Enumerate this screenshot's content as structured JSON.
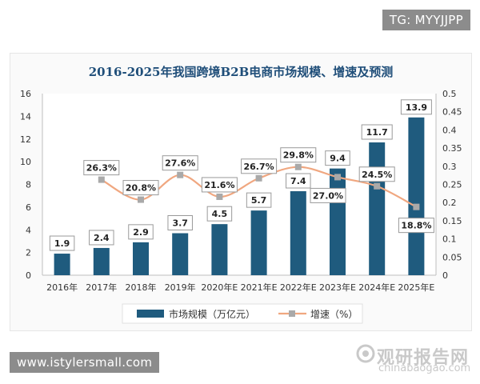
{
  "tags": {
    "top": "TG: MYYJJPP",
    "bottom": "www.istylersmall.com"
  },
  "watermark": {
    "logo": "观研报告网",
    "url": "chinabaogao.com"
  },
  "chart_data": {
    "type": "bar+line",
    "title": "2016-2025年我国跨境B2B电商市场规模、增速及预测",
    "categories": [
      "2016年",
      "2017年",
      "2018年",
      "2019年",
      "2020年E",
      "2021年E",
      "2022年E",
      "2023年E",
      "2024年E",
      "2025年E"
    ],
    "series": [
      {
        "name": "市场规模（万亿元）",
        "type": "bar",
        "axis": "left",
        "values": [
          1.9,
          2.4,
          2.9,
          3.7,
          4.5,
          5.7,
          7.4,
          9.4,
          11.7,
          13.9
        ],
        "labels": [
          "1.9",
          "2.4",
          "2.9",
          "3.7",
          "4.5",
          "5.7",
          "7.4",
          "9.4",
          "11.7",
          "13.9"
        ]
      },
      {
        "name": "增速（%）",
        "type": "line",
        "axis": "right",
        "values": [
          null,
          0.263,
          0.208,
          0.276,
          0.216,
          0.267,
          0.298,
          0.27,
          0.245,
          0.188
        ],
        "labels": [
          "",
          "26.3%",
          "20.8%",
          "27.6%",
          "21.6%",
          "26.7%",
          "29.8%",
          "27.0%",
          "24.5%",
          "18.8%"
        ]
      }
    ],
    "y_left": {
      "min": 0,
      "max": 16,
      "ticks": [
        "0",
        "2",
        "4",
        "6",
        "8",
        "10",
        "12",
        "14",
        "16"
      ]
    },
    "y_right": {
      "min": 0,
      "max": 0.5,
      "ticks": [
        "0",
        "0.05",
        "0.1",
        "0.15",
        "0.2",
        "0.25",
        "0.3",
        "0.35",
        "0.4",
        "0.45",
        "0.5"
      ]
    },
    "grid": false,
    "legend_position": "bottom",
    "colors": {
      "bar": "#1f5b7e",
      "line": "#f0a780",
      "marker": "#a9a9a9",
      "title": "#1f4e79"
    }
  }
}
